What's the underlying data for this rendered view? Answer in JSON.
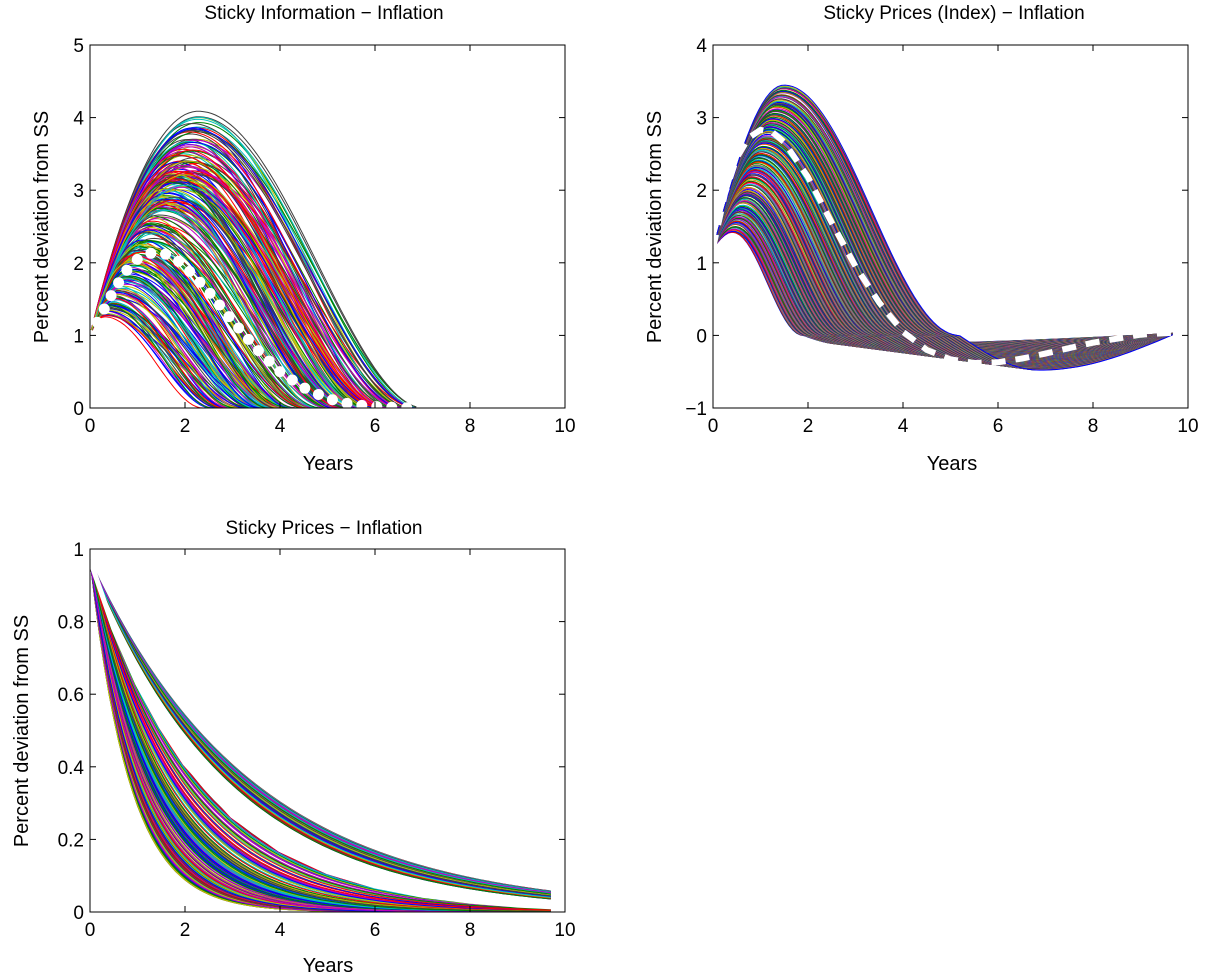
{
  "chart_data": [
    {
      "id": "sticky_information",
      "type": "line",
      "title": "Sticky Information − Inflation",
      "xlabel": "Years",
      "ylabel": "Percent deviation from SS",
      "xlim": [
        0,
        10
      ],
      "ylim": [
        0,
        5
      ],
      "xticks": [
        "0",
        "2",
        "4",
        "6",
        "8",
        "10"
      ],
      "yticks": [
        "0",
        "1",
        "2",
        "3",
        "4",
        "5"
      ],
      "grid": false,
      "legend": "none",
      "ensemble": {
        "count": 300,
        "start_value": 1.0,
        "peak_year_range": [
          0.3,
          2.3
        ],
        "peak_value_range": [
          1.0,
          4.2
        ],
        "returns_to_zero_by_year": [
          2,
          7
        ],
        "colors": [
          "#0000ff",
          "#008000",
          "#ff0000",
          "#00bfbf",
          "#bf00bf",
          "#bfbf00",
          "#404040"
        ]
      },
      "highlight": {
        "style": "white-dotted",
        "color": "#ffffff",
        "x": [
          0,
          0.25,
          0.5,
          0.75,
          1.0,
          1.25,
          1.5,
          1.75,
          2.0,
          2.5,
          3.0,
          3.5,
          4.0,
          4.5,
          5.0,
          5.5,
          6.0,
          6.5,
          7.0
        ],
        "y": [
          1.0,
          1.3,
          1.62,
          1.88,
          2.05,
          2.13,
          2.14,
          2.08,
          1.95,
          1.6,
          1.2,
          0.82,
          0.5,
          0.28,
          0.13,
          0.05,
          0.02,
          0.005,
          0.0
        ]
      }
    },
    {
      "id": "sticky_prices_index",
      "type": "line",
      "title": "Sticky Prices (Index) − Inflation",
      "xlabel": "Years",
      "ylabel": "Percent deviation from SS",
      "xlim": [
        0,
        10
      ],
      "ylim": [
        -1,
        4
      ],
      "xticks": [
        "0",
        "2",
        "4",
        "6",
        "8",
        "10"
      ],
      "yticks": [
        "−1",
        "0",
        "1",
        "2",
        "3",
        "4"
      ],
      "grid": false,
      "legend": "none",
      "ensemble": {
        "count": 260,
        "start_value": 1.2,
        "peak_year_range": [
          0.4,
          1.5
        ],
        "peak_value_range": [
          1.4,
          3.45
        ],
        "undershoot_min": -0.48,
        "end_year": 9.75,
        "colors": [
          "#0000ff",
          "#008000",
          "#ff0000",
          "#00bfbf",
          "#bf00bf",
          "#bfbf00",
          "#404040"
        ]
      },
      "highlight": {
        "style": "white-dashed",
        "color": "#ffffff",
        "x": [
          0,
          0.25,
          0.5,
          0.75,
          1.0,
          1.25,
          1.5,
          2.0,
          2.5,
          3.0,
          3.5,
          4.0,
          4.5,
          5.0,
          5.5,
          6.0,
          6.5,
          7.0,
          8.0,
          9.0,
          9.75
        ],
        "y": [
          1.2,
          1.95,
          2.45,
          2.72,
          2.83,
          2.8,
          2.66,
          2.18,
          1.55,
          0.95,
          0.45,
          0.05,
          -0.2,
          -0.33,
          -0.38,
          -0.37,
          -0.32,
          -0.25,
          -0.1,
          0.01,
          0.04
        ]
      }
    },
    {
      "id": "sticky_prices",
      "type": "line",
      "title": "Sticky Prices − Inflation",
      "xlabel": "Years",
      "ylabel": "Percent deviation from SS",
      "xlim": [
        0,
        10
      ],
      "ylim": [
        0,
        1
      ],
      "xticks": [
        "0",
        "2",
        "4",
        "6",
        "8",
        "10"
      ],
      "yticks": [
        "0",
        "0.2",
        "0.4",
        "0.6",
        "0.8",
        "1"
      ],
      "grid": false,
      "legend": "none",
      "ensemble": {
        "count": 320,
        "start_value": 0.97,
        "end_year": 9.75,
        "upper_band_decay_rates": [
          0.29,
          0.34
        ],
        "lower_band_decay_rates": [
          0.44,
          1.2
        ],
        "colors": [
          "#0000ff",
          "#008000",
          "#ff0000",
          "#00bfbf",
          "#bf00bf",
          "#bfbf00",
          "#404040"
        ]
      },
      "highlight": {
        "style": "white-solid",
        "color": "#ffffff",
        "x": [
          0,
          0.5,
          1.0,
          1.5,
          2.0,
          3.0,
          4.0,
          5.0,
          6.0,
          7.0,
          8.0,
          9.0,
          9.75
        ],
        "y": [
          0.97,
          0.78,
          0.63,
          0.51,
          0.41,
          0.265,
          0.172,
          0.111,
          0.072,
          0.046,
          0.03,
          0.019,
          0.014
        ]
      }
    }
  ]
}
